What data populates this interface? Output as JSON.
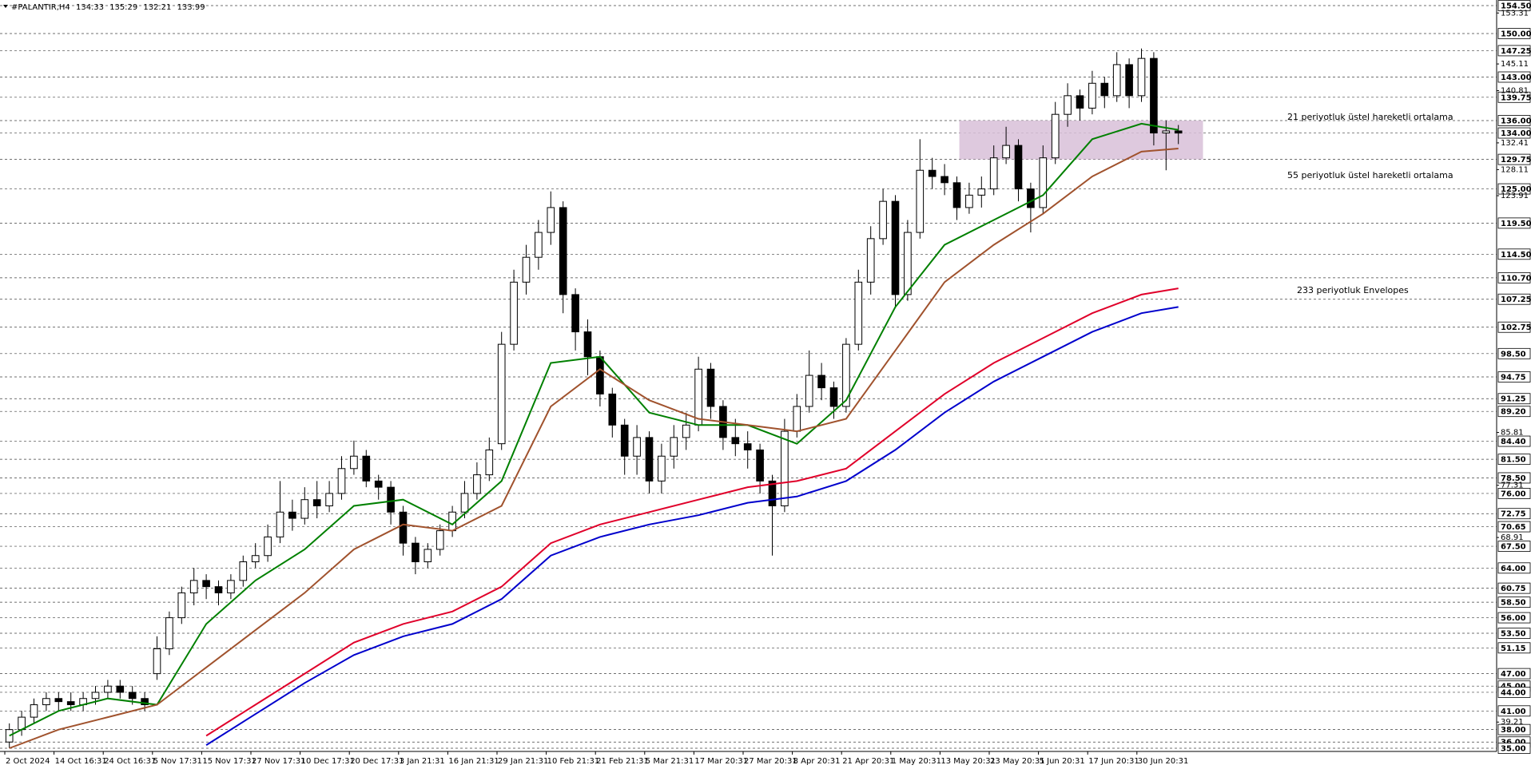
{
  "chart_data": {
    "type": "candlestick",
    "title": "#PALANTIR,H4",
    "header_ohlc": [
      134.33,
      135.29,
      132.21,
      133.99
    ],
    "ylim": [
      35,
      154.5
    ],
    "categories": [
      "2 Oct 2024",
      "14 Oct 16:31",
      "24 Oct 16:31",
      "5 Nov 17:31",
      "15 Nov 17:31",
      "27 Nov 17:31",
      "10 Dec 17:31",
      "20 Dec 17:31",
      "3 Jan 21:31",
      "16 Jan 21:31",
      "29 Jan 21:31",
      "10 Feb 21:31",
      "21 Feb 21:31",
      "5 Mar 21:31",
      "17 Mar 20:31",
      "27 Mar 20:31",
      "8 Apr 20:31",
      "21 Apr 20:31",
      "1 May 20:31",
      "13 May 20:31",
      "23 May 20:31",
      "5 Jun 20:31",
      "17 Jun 20:31",
      "30 Jun 20:31"
    ],
    "levels": [
      {
        "value": 154.5,
        "label": "154.50"
      },
      {
        "value": 150,
        "label": "150.00"
      },
      147.25,
      {
        "value": 143,
        "label": "143.00"
      },
      139.75,
      {
        "value": 136,
        "label": "136.00"
      },
      {
        "value": 134,
        "label": "134.00"
      },
      129.75,
      {
        "value": 125,
        "label": "125.00"
      },
      {
        "value": 119.5,
        "label": "119.50"
      },
      {
        "value": 114.5,
        "label": "114.50"
      },
      {
        "value": 110.7,
        "label": "110.70"
      },
      107.25,
      102.75,
      {
        "value": 98.5,
        "label": "98.50"
      },
      94.75,
      91.25,
      {
        "value": 89.2,
        "label": "89.20"
      },
      {
        "value": 84.4,
        "label": "84.40"
      },
      {
        "value": 81.5,
        "label": "81.50"
      },
      {
        "value": 78.5,
        "label": "78.50"
      },
      {
        "value": 76,
        "label": "76.00"
      },
      72.75,
      70.65,
      {
        "value": 67.5,
        "label": "67.50"
      },
      {
        "value": 64,
        "label": "64.00"
      },
      60.75,
      {
        "value": 58.5,
        "label": "58.50"
      },
      {
        "value": 56,
        "label": "56.00"
      },
      {
        "value": 53.5,
        "label": "53.50"
      },
      51.15,
      {
        "value": 47,
        "label": "47.00"
      },
      {
        "value": 45,
        "label": "45.00"
      },
      {
        "value": 44,
        "label": "44.00"
      },
      {
        "value": 41,
        "label": "41.00"
      },
      {
        "value": 38,
        "label": "38.00"
      },
      {
        "value": 36,
        "label": "36.00"
      },
      {
        "value": 35,
        "label": "35.00"
      }
    ],
    "yticks": [
      153.31,
      145.11,
      140.81,
      132.41,
      128.11,
      123.91,
      85.81,
      77.31,
      68.91,
      39.21
    ],
    "zone": {
      "ylim": [
        129.75,
        136
      ],
      "color": "#d8bfd8"
    },
    "up_color": "#ffffff",
    "down_color": "#000000",
    "ohlc": [
      [
        36,
        39,
        35,
        38
      ],
      [
        38,
        41,
        37,
        40
      ],
      [
        40,
        43,
        39,
        42
      ],
      [
        42,
        44,
        41,
        43
      ],
      [
        43,
        44,
        41,
        42.5
      ],
      [
        42.5,
        44,
        41,
        42
      ],
      [
        42,
        44,
        41,
        43
      ],
      [
        43,
        45,
        42,
        44
      ],
      [
        44,
        46,
        43,
        45
      ],
      [
        45,
        46,
        43,
        44
      ],
      [
        44,
        45,
        42,
        43
      ],
      [
        43,
        44,
        41,
        42
      ],
      [
        47,
        53,
        46,
        51
      ],
      [
        51,
        57,
        50,
        56
      ],
      [
        56,
        61,
        55,
        60
      ],
      [
        60,
        64,
        58,
        62
      ],
      [
        62,
        63,
        59,
        61
      ],
      [
        61,
        62,
        58,
        60
      ],
      [
        60,
        63,
        59,
        62
      ],
      [
        62,
        66,
        61,
        65
      ],
      [
        65,
        68,
        64,
        66
      ],
      [
        66,
        71,
        65,
        69
      ],
      [
        69,
        78,
        68,
        73
      ],
      [
        73,
        75,
        70,
        72
      ],
      [
        72,
        77,
        71,
        75
      ],
      [
        75,
        78,
        72,
        74
      ],
      [
        74,
        78,
        73,
        76
      ],
      [
        76,
        82,
        75,
        80
      ],
      [
        80,
        84.5,
        79,
        82
      ],
      [
        82,
        83,
        77,
        78
      ],
      [
        78,
        79,
        75,
        77
      ],
      [
        77,
        78,
        71,
        73
      ],
      [
        73,
        74,
        66,
        68
      ],
      [
        68,
        69,
        63,
        65
      ],
      [
        65,
        68,
        64,
        67
      ],
      [
        67,
        71,
        66,
        70
      ],
      [
        70,
        74,
        69,
        73
      ],
      [
        73,
        78,
        72,
        76
      ],
      [
        76,
        81,
        75,
        79
      ],
      [
        79,
        85,
        78,
        83
      ],
      [
        84,
        102,
        83,
        100
      ],
      [
        100,
        112,
        99,
        110
      ],
      [
        110,
        116,
        108,
        114
      ],
      [
        114,
        120,
        112,
        118
      ],
      [
        118,
        124.6,
        116,
        122
      ],
      [
        122,
        123,
        105,
        108
      ],
      [
        108,
        109,
        99,
        102
      ],
      [
        102,
        104,
        95,
        98
      ],
      [
        98,
        99,
        90,
        92
      ],
      [
        92,
        93,
        85,
        87
      ],
      [
        87,
        88,
        79,
        82
      ],
      [
        82,
        87,
        79,
        85
      ],
      [
        85,
        86,
        76,
        78
      ],
      [
        78,
        84,
        76,
        82
      ],
      [
        82,
        87,
        80,
        85
      ],
      [
        85,
        89,
        83,
        87
      ],
      [
        87,
        98,
        86,
        96
      ],
      [
        96,
        97,
        88,
        90
      ],
      [
        90,
        91,
        83,
        85
      ],
      [
        85,
        88,
        82,
        84
      ],
      [
        84,
        86,
        80,
        83
      ],
      [
        83,
        84,
        76,
        78
      ],
      [
        78,
        79,
        66,
        74
      ],
      [
        74,
        88,
        73,
        86
      ],
      [
        86,
        92,
        85,
        90
      ],
      [
        90,
        99,
        89,
        95
      ],
      [
        95,
        97,
        91,
        93
      ],
      [
        93,
        94,
        88,
        90
      ],
      [
        90,
        101,
        89,
        100
      ],
      [
        100,
        112,
        99,
        110
      ],
      [
        110,
        119,
        108,
        117
      ],
      [
        117,
        125,
        116,
        123
      ],
      [
        123,
        124,
        106,
        108
      ],
      [
        108,
        120,
        107,
        118
      ],
      [
        118,
        133,
        117,
        128
      ],
      [
        128,
        130,
        125,
        127
      ],
      [
        127,
        129,
        124,
        126
      ],
      [
        126,
        127,
        120,
        122
      ],
      [
        122,
        126,
        121,
        124
      ],
      [
        124,
        127,
        122,
        125
      ],
      [
        125,
        132,
        124,
        130
      ],
      [
        130,
        135,
        129,
        132
      ],
      [
        132,
        133,
        123,
        125
      ],
      [
        125,
        126,
        118,
        122
      ],
      [
        122,
        132,
        121,
        130
      ],
      [
        130,
        139,
        129,
        137
      ],
      [
        137,
        142,
        135,
        140
      ],
      [
        140,
        141,
        136,
        138
      ],
      [
        138,
        144,
        137,
        142
      ],
      [
        142,
        143,
        138,
        140
      ],
      [
        140,
        147,
        139,
        145
      ],
      [
        145,
        146,
        138,
        140
      ],
      [
        140,
        147.6,
        139,
        146
      ],
      [
        146,
        147,
        132,
        134
      ],
      [
        134,
        136,
        128,
        134.33
      ],
      [
        134.33,
        135.29,
        132.21,
        133.99
      ]
    ],
    "series": [
      {
        "name": "21 periyotluk üstel hareketli ortalama",
        "color": "#008000",
        "x": [
          0,
          4,
          8,
          12,
          16,
          20,
          24,
          28,
          32,
          36,
          40,
          44,
          48,
          52,
          56,
          60,
          64,
          68,
          72,
          76,
          80,
          84,
          88,
          92,
          95
        ],
        "values": [
          37,
          41,
          43,
          42,
          55,
          62,
          67,
          74,
          75,
          71,
          78,
          97,
          98,
          89,
          87,
          87,
          84,
          91,
          106,
          116,
          120,
          124,
          133,
          135.5,
          134.5
        ]
      },
      {
        "name": "55 periyotluk üstel hareketli ortalama",
        "color": "#a0522d",
        "x": [
          0,
          4,
          8,
          12,
          16,
          20,
          24,
          28,
          32,
          36,
          40,
          44,
          48,
          52,
          56,
          60,
          64,
          68,
          72,
          76,
          80,
          84,
          88,
          92,
          95
        ],
        "values": [
          35,
          38,
          40,
          42,
          48,
          54,
          60,
          67,
          71,
          70,
          74,
          90,
          96,
          91,
          88,
          87,
          86,
          88,
          99,
          110,
          116,
          121,
          127,
          131,
          131.5
        ]
      },
      {
        "color": "#e0002a",
        "x": [
          16,
          20,
          24,
          28,
          32,
          36,
          40,
          44,
          48,
          52,
          56,
          60,
          64,
          68,
          72,
          76,
          80,
          84,
          88,
          92,
          95
        ],
        "values": [
          37,
          42,
          47,
          52,
          55,
          57,
          61,
          68,
          71,
          73,
          75,
          77,
          78,
          80,
          86,
          92,
          97,
          101,
          105,
          108,
          109
        ]
      },
      {
        "name": "233 periyotluk Envelopes",
        "color": "#0000cc",
        "x": [
          16,
          20,
          24,
          28,
          32,
          36,
          40,
          44,
          48,
          52,
          56,
          60,
          64,
          68,
          72,
          76,
          80,
          84,
          88,
          92,
          95
        ],
        "values": [
          35.5,
          40.5,
          45.5,
          50,
          53,
          55,
          59,
          66,
          69,
          71,
          72.5,
          74.5,
          75.5,
          78,
          83,
          89,
          94,
          98,
          102,
          105,
          106
        ]
      }
    ]
  }
}
